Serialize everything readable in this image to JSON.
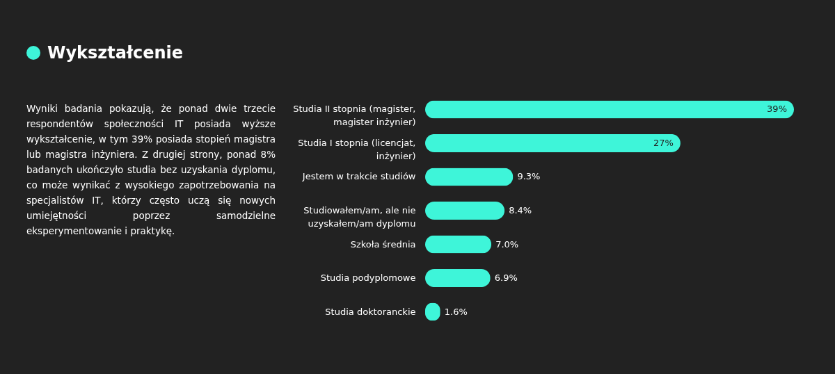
{
  "chart_data": {
    "type": "bar",
    "orientation": "horizontal",
    "title": "Wykształcenie",
    "annotations": [
      "Wyniki badania pokazują, że ponad dwie trzecie respondentów społeczności IT posiada wyższe wykształcenie, w tym 39% posiada stopień magistra lub magistra inżyniera. Z drugiej strony, ponad 8% badanych ukończyło studia bez uzyskania dyplomu, co może wynikać z wysokiego zapotrzebowania na specjalistów IT, którzy często uczą się nowych umiejętności poprzez samodzielne eksperymentowanie i praktykę."
    ],
    "categories": [
      "Studia II stopnia (magister, magister inżynier)",
      "Studia I stopnia (licencjat, inżynier)",
      "Jestem w trakcie studiów",
      "Studiowałem/am, ale nie uzyskałem/am dyplomu",
      "Szkoła średnia",
      "Studia podyplomowe",
      "Studia doktoranckie"
    ],
    "values": [
      39,
      27,
      9.3,
      8.4,
      7.0,
      6.9,
      1.6
    ],
    "value_labels": [
      "39%",
      "27%",
      "9.3%",
      "8.4%",
      "7.0%",
      "6.9%",
      "1.6%"
    ],
    "color": "#3ef5d9"
  }
}
